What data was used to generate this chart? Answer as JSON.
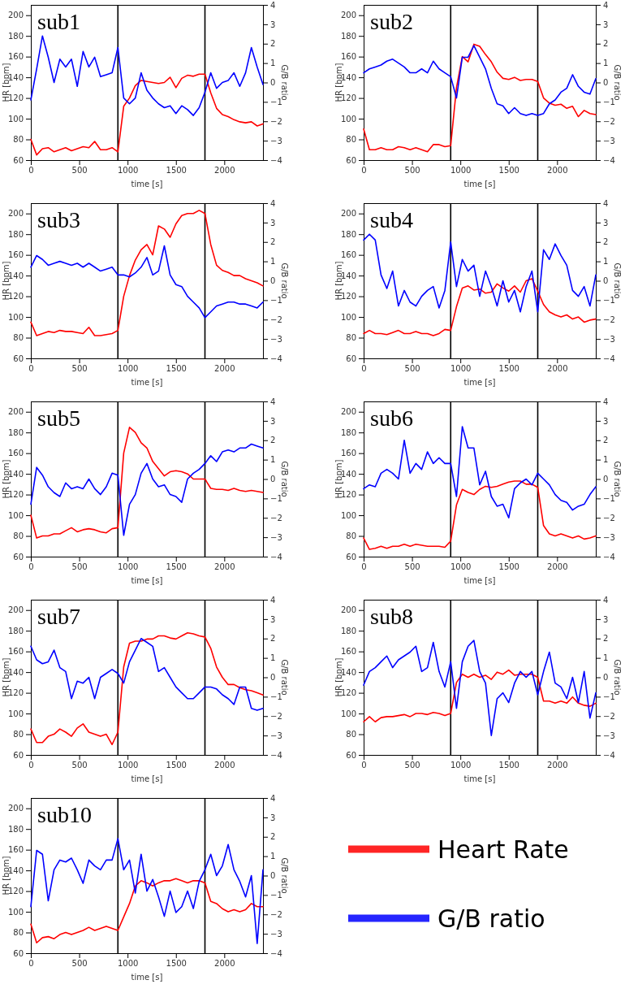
{
  "chart_data": [
    {
      "type": "line",
      "title": "sub1",
      "xlabel": "time [s]",
      "ylabel": "HR [bpm]",
      "y2label": "G/B ratio",
      "xlim": [
        0,
        2400
      ],
      "xticks": [
        0,
        500,
        1000,
        1500,
        2000
      ],
      "ylim": [
        60,
        210
      ],
      "yticks": [
        60,
        80,
        100,
        120,
        140,
        160,
        180,
        200
      ],
      "y2lim": [
        -4,
        4
      ],
      "y2ticks": [
        -4,
        -3,
        -2,
        -1,
        0,
        1,
        2,
        3,
        4
      ],
      "x": [
        0,
        60,
        120,
        180,
        240,
        300,
        360,
        420,
        480,
        540,
        600,
        660,
        720,
        780,
        840,
        900,
        960,
        1020,
        1080,
        1140,
        1200,
        1260,
        1320,
        1380,
        1440,
        1500,
        1560,
        1620,
        1680,
        1740,
        1800,
        1860,
        1920,
        1980,
        2040,
        2100,
        2160,
        2220,
        2280,
        2340,
        2400
      ],
      "ref_lines": [
        {
          "axis": "x",
          "value": 900,
          "color": "#000000"
        },
        {
          "axis": "x",
          "value": 1800,
          "color": "#000000"
        }
      ],
      "series": [
        {
          "color": "#ff0000",
          "values": [
            80,
            65,
            71,
            72,
            68,
            70,
            72,
            69,
            71,
            73,
            72,
            78,
            70,
            70,
            72,
            68,
            112,
            120,
            132,
            137,
            136,
            135,
            134,
            135,
            140,
            130,
            139,
            142,
            141,
            143,
            143,
            125,
            110,
            104,
            102,
            99,
            97,
            96,
            97,
            93,
            95
          ]
        },
        {
          "color": "#0000ff",
          "axis": "y2",
          "values": [
            -0.9,
            0.7,
            2.4,
            1.3,
            0,
            1.2,
            0.8,
            1.2,
            -0.2,
            1.6,
            0.8,
            1.3,
            0.3,
            0.4,
            0.5,
            1.8,
            -0.8,
            -1.1,
            -0.8,
            0.5,
            -0.4,
            -0.8,
            -1.1,
            -1.3,
            -1.2,
            -1.6,
            -1.2,
            -1.4,
            -1.7,
            -1.3,
            -0.5,
            0.5,
            -0.3,
            0,
            0.1,
            0.5,
            -0.2,
            0.5,
            1.8,
            0.8,
            -0.1
          ]
        }
      ]
    },
    {
      "type": "line",
      "title": "sub2",
      "xlabel": "time [s]",
      "ylabel": "HR [bpm]",
      "y2label": "G/B ratio",
      "xlim": [
        0,
        2400
      ],
      "xticks": [
        0,
        500,
        1000,
        1500,
        2000
      ],
      "ylim": [
        60,
        210
      ],
      "yticks": [
        60,
        80,
        100,
        120,
        140,
        160,
        180,
        200
      ],
      "y2lim": [
        -4,
        4
      ],
      "y2ticks": [
        -4,
        -3,
        -2,
        -1,
        0,
        1,
        2,
        3,
        4
      ],
      "x": [
        0,
        60,
        120,
        180,
        240,
        300,
        360,
        420,
        480,
        540,
        600,
        660,
        720,
        780,
        840,
        900,
        960,
        1020,
        1080,
        1140,
        1200,
        1260,
        1320,
        1380,
        1440,
        1500,
        1560,
        1620,
        1680,
        1740,
        1800,
        1860,
        1920,
        1980,
        2040,
        2100,
        2160,
        2220,
        2280,
        2340,
        2400
      ],
      "ref_lines": [
        {
          "axis": "x",
          "value": 900,
          "color": "#000000"
        },
        {
          "axis": "x",
          "value": 1800,
          "color": "#000000"
        }
      ],
      "series": [
        {
          "color": "#ff0000",
          "values": [
            90,
            70,
            70,
            72,
            70,
            70,
            73,
            72,
            70,
            72,
            70,
            68,
            75,
            75,
            73,
            74,
            130,
            160,
            155,
            172,
            170,
            162,
            155,
            145,
            139,
            138,
            140,
            137,
            138,
            138,
            136,
            120,
            115,
            113,
            114,
            110,
            112,
            102,
            108,
            105,
            104
          ]
        },
        {
          "color": "#0000ff",
          "axis": "y2",
          "values": [
            0.5,
            0.7,
            0.8,
            0.9,
            1.1,
            1.2,
            1.0,
            0.8,
            0.5,
            0.5,
            0.7,
            0.5,
            1.1,
            0.7,
            0.5,
            0.3,
            -0.8,
            1.3,
            1.3,
            1.9,
            1.3,
            0.7,
            -0.3,
            -1.1,
            -1.2,
            -1.6,
            -1.3,
            -1.6,
            -1.7,
            -1.6,
            -1.7,
            -1.6,
            -1.1,
            -0.9,
            -0.5,
            -0.3,
            0.4,
            -0.2,
            -0.5,
            -0.6,
            0.2
          ]
        }
      ]
    },
    {
      "type": "line",
      "title": "sub3",
      "xlabel": "time [s]",
      "ylabel": "HR [bpm]",
      "y2label": "G/B ratio",
      "xlim": [
        0,
        2400
      ],
      "xticks": [
        0,
        500,
        1000,
        1500,
        2000
      ],
      "ylim": [
        60,
        210
      ],
      "yticks": [
        60,
        80,
        100,
        120,
        140,
        160,
        180,
        200
      ],
      "y2lim": [
        -4,
        4
      ],
      "y2ticks": [
        -4,
        -3,
        -2,
        -1,
        0,
        1,
        2,
        3,
        4
      ],
      "x": [
        0,
        60,
        120,
        180,
        240,
        300,
        360,
        420,
        480,
        540,
        600,
        660,
        720,
        780,
        840,
        900,
        960,
        1020,
        1080,
        1140,
        1200,
        1260,
        1320,
        1380,
        1440,
        1500,
        1560,
        1620,
        1680,
        1740,
        1800,
        1860,
        1920,
        1980,
        2040,
        2100,
        2160,
        2220,
        2280,
        2340,
        2400
      ],
      "ref_lines": [
        {
          "axis": "x",
          "value": 900,
          "color": "#000000"
        },
        {
          "axis": "x",
          "value": 1800,
          "color": "#000000"
        }
      ],
      "series": [
        {
          "color": "#ff0000",
          "values": [
            95,
            82,
            84,
            86,
            85,
            87,
            86,
            86,
            85,
            84,
            90,
            82,
            82,
            83,
            84,
            87,
            120,
            140,
            155,
            165,
            170,
            160,
            188,
            185,
            177,
            190,
            198,
            200,
            200,
            203,
            200,
            170,
            150,
            145,
            143,
            140,
            140,
            137,
            135,
            133,
            130
          ]
        },
        {
          "color": "#0000ff",
          "axis": "y2",
          "values": [
            0.7,
            1.3,
            1.1,
            0.8,
            0.9,
            1.0,
            0.9,
            0.8,
            0.9,
            0.7,
            0.9,
            0.7,
            0.5,
            0.6,
            0.7,
            0.3,
            0.3,
            0.2,
            0.4,
            0.7,
            1.2,
            0.3,
            0.5,
            1.8,
            0.3,
            -0.2,
            -0.3,
            -0.8,
            -1.1,
            -1.4,
            -1.9,
            -1.6,
            -1.3,
            -1.2,
            -1.1,
            -1.1,
            -1.2,
            -1.2,
            -1.3,
            -1.4,
            -1.1
          ]
        }
      ]
    },
    {
      "type": "line",
      "title": "sub4",
      "xlabel": "time [s]",
      "ylabel": "HR [bpm]",
      "y2label": "G/B ratio",
      "xlim": [
        0,
        2400
      ],
      "xticks": [
        0,
        500,
        1000,
        1500,
        2000
      ],
      "ylim": [
        60,
        210
      ],
      "yticks": [
        60,
        80,
        100,
        120,
        140,
        160,
        180,
        200
      ],
      "y2lim": [
        -4,
        4
      ],
      "y2ticks": [
        -4,
        -3,
        -2,
        -1,
        0,
        1,
        2,
        3,
        4
      ],
      "x": [
        0,
        60,
        120,
        180,
        240,
        300,
        360,
        420,
        480,
        540,
        600,
        660,
        720,
        780,
        840,
        900,
        960,
        1020,
        1080,
        1140,
        1200,
        1260,
        1320,
        1380,
        1440,
        1500,
        1560,
        1620,
        1680,
        1740,
        1800,
        1860,
        1920,
        1980,
        2040,
        2100,
        2160,
        2220,
        2280,
        2340,
        2400
      ],
      "ref_lines": [
        {
          "axis": "x",
          "value": 900,
          "color": "#000000"
        },
        {
          "axis": "x",
          "value": 1800,
          "color": "#000000"
        }
      ],
      "series": [
        {
          "color": "#ff0000",
          "values": [
            84,
            87,
            84,
            84,
            83,
            85,
            87,
            84,
            84,
            86,
            84,
            84,
            82,
            84,
            88,
            87,
            110,
            128,
            130,
            126,
            127,
            123,
            124,
            132,
            128,
            125,
            130,
            124,
            135,
            137,
            125,
            112,
            105,
            102,
            100,
            102,
            98,
            100,
            95,
            97,
            98
          ]
        },
        {
          "color": "#0000ff",
          "axis": "y2",
          "values": [
            2.1,
            2.4,
            2.1,
            0.3,
            -0.4,
            0.5,
            -1.3,
            -0.5,
            -1.1,
            -1.3,
            -0.8,
            -0.5,
            -0.3,
            -1.4,
            -0.5,
            2.0,
            -0.3,
            1.1,
            0.5,
            0.8,
            -0.8,
            0.5,
            -0.3,
            -1.3,
            0,
            -1.1,
            -0.5,
            -1.6,
            -0.3,
            0.5,
            -1.6,
            1.6,
            1.1,
            1.9,
            1.3,
            0.8,
            -0.5,
            -0.8,
            -0.3,
            -1.3,
            0.3
          ]
        }
      ]
    },
    {
      "type": "line",
      "title": "sub5",
      "xlabel": "time [s]",
      "ylabel": "HR [bpm]",
      "y2label": "G/B ratio",
      "xlim": [
        0,
        2400
      ],
      "xticks": [
        0,
        500,
        1000,
        1500,
        2000
      ],
      "ylim": [
        60,
        210
      ],
      "yticks": [
        60,
        80,
        100,
        120,
        140,
        160,
        180,
        200
      ],
      "y2lim": [
        -4,
        4
      ],
      "y2ticks": [
        -4,
        -3,
        -2,
        -1,
        0,
        1,
        2,
        3,
        4
      ],
      "x": [
        0,
        60,
        120,
        180,
        240,
        300,
        360,
        420,
        480,
        540,
        600,
        660,
        720,
        780,
        840,
        900,
        960,
        1020,
        1080,
        1140,
        1200,
        1260,
        1320,
        1380,
        1440,
        1500,
        1560,
        1620,
        1680,
        1740,
        1800,
        1860,
        1920,
        1980,
        2040,
        2100,
        2160,
        2220,
        2280,
        2340,
        2400
      ],
      "ref_lines": [
        {
          "axis": "x",
          "value": 900,
          "color": "#000000"
        },
        {
          "axis": "x",
          "value": 1800,
          "color": "#000000"
        }
      ],
      "series": [
        {
          "color": "#ff0000",
          "values": [
            100,
            78,
            80,
            80,
            82,
            82,
            85,
            88,
            84,
            86,
            87,
            86,
            84,
            83,
            87,
            88,
            160,
            185,
            180,
            170,
            165,
            152,
            145,
            138,
            142,
            143,
            142,
            140,
            135,
            135,
            135,
            126,
            125,
            125,
            124,
            126,
            124,
            123,
            124,
            123,
            122
          ]
        },
        {
          "color": "#0000ff",
          "axis": "y2",
          "values": [
            -1.3,
            0.6,
            0.2,
            -0.4,
            -0.7,
            -0.9,
            -0.2,
            -0.5,
            -0.4,
            -0.5,
            0,
            -0.5,
            -0.8,
            -0.4,
            0.3,
            0.2,
            -2.9,
            -1.3,
            -0.8,
            0.3,
            0.8,
            0,
            -0.4,
            -0.3,
            -0.8,
            -0.9,
            -1.2,
            0,
            0.3,
            0.5,
            0.8,
            1.2,
            0.9,
            1.4,
            1.5,
            1.4,
            1.6,
            1.6,
            1.8,
            1.7,
            1.6
          ]
        }
      ]
    },
    {
      "type": "line",
      "title": "sub6",
      "xlabel": "time [s]",
      "ylabel": "HR [bpm]",
      "y2label": "G/B ratio",
      "xlim": [
        0,
        2400
      ],
      "xticks": [
        0,
        500,
        1000,
        1500,
        2000
      ],
      "ylim": [
        60,
        210
      ],
      "yticks": [
        60,
        80,
        100,
        120,
        140,
        160,
        180,
        200
      ],
      "y2lim": [
        -4,
        4
      ],
      "y2ticks": [
        -4,
        -3,
        -2,
        -1,
        0,
        1,
        2,
        3,
        4
      ],
      "x": [
        0,
        60,
        120,
        180,
        240,
        300,
        360,
        420,
        480,
        540,
        600,
        660,
        720,
        780,
        840,
        900,
        960,
        1020,
        1080,
        1140,
        1200,
        1260,
        1320,
        1380,
        1440,
        1500,
        1560,
        1620,
        1680,
        1740,
        1800,
        1860,
        1920,
        1980,
        2040,
        2100,
        2160,
        2220,
        2280,
        2340,
        2400
      ],
      "ref_lines": [
        {
          "axis": "x",
          "value": 900,
          "color": "#000000"
        },
        {
          "axis": "x",
          "value": 1800,
          "color": "#000000"
        }
      ],
      "series": [
        {
          "color": "#ff0000",
          "values": [
            78,
            67,
            68,
            70,
            68,
            70,
            70,
            72,
            70,
            72,
            71,
            70,
            70,
            70,
            69,
            75,
            110,
            125,
            122,
            120,
            125,
            128,
            127,
            128,
            130,
            132,
            133,
            133,
            130,
            130,
            127,
            90,
            82,
            80,
            82,
            80,
            78,
            80,
            77,
            78,
            80
          ]
        },
        {
          "color": "#0000ff",
          "axis": "y2",
          "values": [
            -0.5,
            -0.3,
            -0.4,
            0.3,
            0.5,
            0.3,
            0,
            2.0,
            0.3,
            0.8,
            0.5,
            1.4,
            0.8,
            1.1,
            0.8,
            0.8,
            -0.9,
            2.7,
            1.6,
            1.6,
            -0.3,
            0.4,
            -0.9,
            -1.4,
            -1.3,
            -2.0,
            -0.5,
            -0.2,
            0,
            -0.3,
            0.3,
            0,
            -0.3,
            -0.8,
            -1.1,
            -1.2,
            -1.6,
            -1.4,
            -1.3,
            -0.8,
            -0.4
          ]
        }
      ]
    },
    {
      "type": "line",
      "title": "sub7",
      "xlabel": "time [s]",
      "ylabel": "HR [bpm]",
      "y2label": "G/B ratio",
      "xlim": [
        0,
        2400
      ],
      "xticks": [
        0,
        500,
        1000,
        1500,
        2000
      ],
      "ylim": [
        60,
        210
      ],
      "yticks": [
        60,
        80,
        100,
        120,
        140,
        160,
        180,
        200
      ],
      "y2lim": [
        -4,
        4
      ],
      "y2ticks": [
        -4,
        -3,
        -2,
        -1,
        0,
        1,
        2,
        3,
        4
      ],
      "x": [
        0,
        60,
        120,
        180,
        240,
        300,
        360,
        420,
        480,
        540,
        600,
        660,
        720,
        780,
        840,
        900,
        960,
        1020,
        1080,
        1140,
        1200,
        1260,
        1320,
        1380,
        1440,
        1500,
        1560,
        1620,
        1680,
        1740,
        1800,
        1860,
        1920,
        1980,
        2040,
        2100,
        2160,
        2220,
        2280,
        2340,
        2400
      ],
      "ref_lines": [
        {
          "axis": "x",
          "value": 900,
          "color": "#000000"
        },
        {
          "axis": "x",
          "value": 1800,
          "color": "#000000"
        }
      ],
      "series": [
        {
          "color": "#ff0000",
          "values": [
            85,
            72,
            72,
            78,
            80,
            85,
            82,
            78,
            86,
            90,
            82,
            80,
            78,
            80,
            70,
            82,
            145,
            168,
            170,
            170,
            172,
            172,
            175,
            175,
            173,
            172,
            175,
            178,
            177,
            175,
            174,
            163,
            145,
            135,
            128,
            128,
            125,
            123,
            122,
            120,
            118
          ]
        },
        {
          "color": "#0000ff",
          "axis": "y2",
          "values": [
            1.6,
            0.9,
            0.7,
            0.8,
            1.4,
            0.5,
            0.3,
            -1.1,
            -0.2,
            -0.3,
            0,
            -1.1,
            0,
            0.2,
            0.4,
            0.2,
            -0.3,
            0.8,
            1.4,
            2.0,
            1.8,
            1.6,
            0.3,
            0.5,
            0,
            -0.5,
            -0.8,
            -1.1,
            -1.1,
            -0.8,
            -0.5,
            -0.5,
            -0.6,
            -0.9,
            -1.1,
            -1.4,
            -0.5,
            -0.5,
            -1.6,
            -1.7,
            -1.6
          ]
        }
      ]
    },
    {
      "type": "line",
      "title": "sub8",
      "xlabel": "time [s]",
      "ylabel": "HR [bpm]",
      "y2label": "G/B ratio",
      "xlim": [
        0,
        2400
      ],
      "xticks": [
        0,
        500,
        1000,
        1500,
        2000
      ],
      "ylim": [
        60,
        210
      ],
      "yticks": [
        60,
        80,
        100,
        120,
        140,
        160,
        180,
        200
      ],
      "y2lim": [
        -4,
        4
      ],
      "y2ticks": [
        -4,
        -3,
        -2,
        -1,
        0,
        1,
        2,
        3,
        4
      ],
      "x": [
        0,
        60,
        120,
        180,
        240,
        300,
        360,
        420,
        480,
        540,
        600,
        660,
        720,
        780,
        840,
        900,
        960,
        1020,
        1080,
        1140,
        1200,
        1260,
        1320,
        1380,
        1440,
        1500,
        1560,
        1620,
        1680,
        1740,
        1800,
        1860,
        1920,
        1980,
        2040,
        2100,
        2160,
        2220,
        2280,
        2340,
        2400
      ],
      "ref_lines": [
        {
          "axis": "x",
          "value": 900,
          "color": "#000000"
        },
        {
          "axis": "x",
          "value": 1800,
          "color": "#000000"
        }
      ],
      "series": [
        {
          "color": "#ff0000",
          "values": [
            92,
            97,
            92,
            96,
            97,
            97,
            98,
            99,
            97,
            100,
            100,
            99,
            101,
            100,
            98,
            100,
            130,
            138,
            135,
            138,
            135,
            137,
            133,
            140,
            138,
            142,
            137,
            138,
            138,
            138,
            135,
            112,
            112,
            110,
            112,
            110,
            116,
            110,
            108,
            107,
            110
          ]
        },
        {
          "color": "#0000ff",
          "axis": "y2",
          "values": [
            -0.4,
            0.3,
            0.5,
            0.8,
            1.1,
            0.5,
            0.9,
            1.1,
            1.3,
            1.6,
            0.3,
            0.5,
            1.8,
            0.3,
            -0.5,
            0.8,
            -1.6,
            0.8,
            1.6,
            1.9,
            0.3,
            -0.3,
            -3.0,
            -1.1,
            -0.8,
            -1.3,
            -0.3,
            0.3,
            0,
            0.3,
            -0.9,
            0.3,
            1.3,
            -0.3,
            -0.5,
            -1.1,
            0,
            -1.3,
            0.3,
            -2.1,
            -0.8
          ]
        }
      ]
    },
    {
      "type": "line",
      "title": "sub10",
      "xlabel": "time [s]",
      "ylabel": "HR [bpm]",
      "y2label": "G/B ratio",
      "xlim": [
        0,
        2400
      ],
      "xticks": [
        0,
        500,
        1000,
        1500,
        2000
      ],
      "ylim": [
        60,
        210
      ],
      "yticks": [
        60,
        80,
        100,
        120,
        140,
        160,
        180,
        200
      ],
      "y2lim": [
        -4,
        4
      ],
      "y2ticks": [
        -4,
        -3,
        -2,
        -1,
        0,
        1,
        2,
        3,
        4
      ],
      "legend": "right",
      "x": [
        0,
        60,
        120,
        180,
        240,
        300,
        360,
        420,
        480,
        540,
        600,
        660,
        720,
        780,
        840,
        900,
        960,
        1020,
        1080,
        1140,
        1200,
        1260,
        1320,
        1380,
        1440,
        1500,
        1560,
        1620,
        1680,
        1740,
        1800,
        1860,
        1920,
        1980,
        2040,
        2100,
        2160,
        2220,
        2280,
        2340,
        2400
      ],
      "ref_lines": [
        {
          "axis": "x",
          "value": 900,
          "color": "#000000"
        },
        {
          "axis": "x",
          "value": 1800,
          "color": "#000000"
        }
      ],
      "series": [
        {
          "name": "Heart Rate",
          "color": "#ff0000",
          "values": [
            88,
            70,
            75,
            76,
            74,
            78,
            80,
            78,
            80,
            82,
            85,
            82,
            84,
            86,
            84,
            82,
            95,
            108,
            125,
            130,
            128,
            125,
            128,
            130,
            130,
            132,
            130,
            128,
            130,
            130,
            128,
            110,
            108,
            103,
            100,
            102,
            100,
            102,
            108,
            105,
            105
          ]
        },
        {
          "name": "G/B ratio",
          "color": "#0000ff",
          "axis": "y2",
          "values": [
            -1.6,
            1.3,
            1.1,
            -1.3,
            0.3,
            0.8,
            0.7,
            0.9,
            0.3,
            -0.4,
            0.8,
            0.5,
            0.3,
            0.8,
            0.8,
            1.9,
            0.3,
            0.8,
            -0.9,
            1.1,
            -0.8,
            -0.2,
            -1.1,
            -2.1,
            -0.8,
            -1.9,
            -1.6,
            -0.8,
            -1.7,
            -0.3,
            0.3,
            1.1,
            0,
            0.5,
            1.6,
            0.3,
            -0.3,
            -1.1,
            0,
            -3.5,
            0.3
          ]
        }
      ]
    }
  ]
}
